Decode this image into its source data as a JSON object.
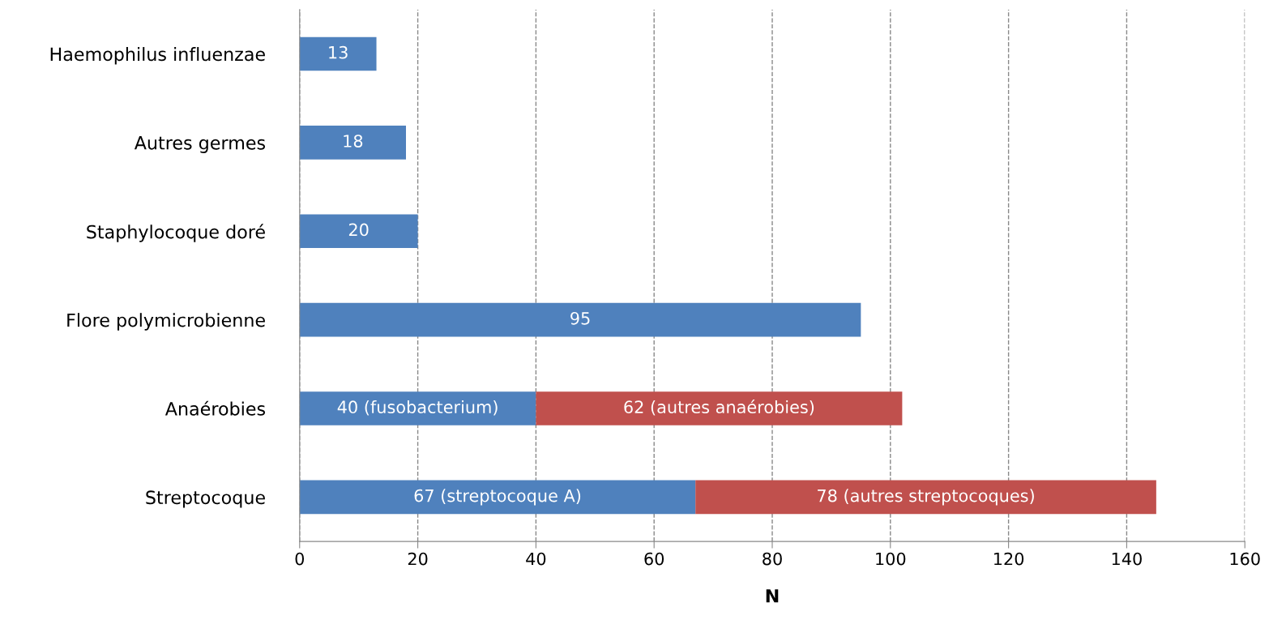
{
  "chart_data": {
    "type": "bar",
    "orientation": "horizontal",
    "stacked": true,
    "categories": [
      "Haemophilus influenzae",
      "Autres germes",
      "Staphylocoque doré",
      "Flore polymicrobienne",
      "Anaérobies",
      "Streptocoque"
    ],
    "series": [
      {
        "color": "#4f81bd",
        "values": [
          13,
          18,
          20,
          95,
          40,
          67
        ],
        "value_labels": [
          "13",
          "18",
          "20",
          "95",
          "40 (fusobacterium)",
          "67 (streptocoque A)"
        ]
      },
      {
        "color": "#c0504d",
        "values": [
          null,
          null,
          null,
          null,
          62,
          78
        ],
        "value_labels": [
          null,
          null,
          null,
          null,
          "62 (autres anaérobies)",
          "78 (autres streptocoques)"
        ]
      }
    ],
    "xlabel": "N",
    "xlim": [
      0,
      160
    ],
    "xticks": [
      0,
      20,
      40,
      60,
      80,
      100,
      120,
      140,
      160
    ],
    "grid": "x"
  }
}
